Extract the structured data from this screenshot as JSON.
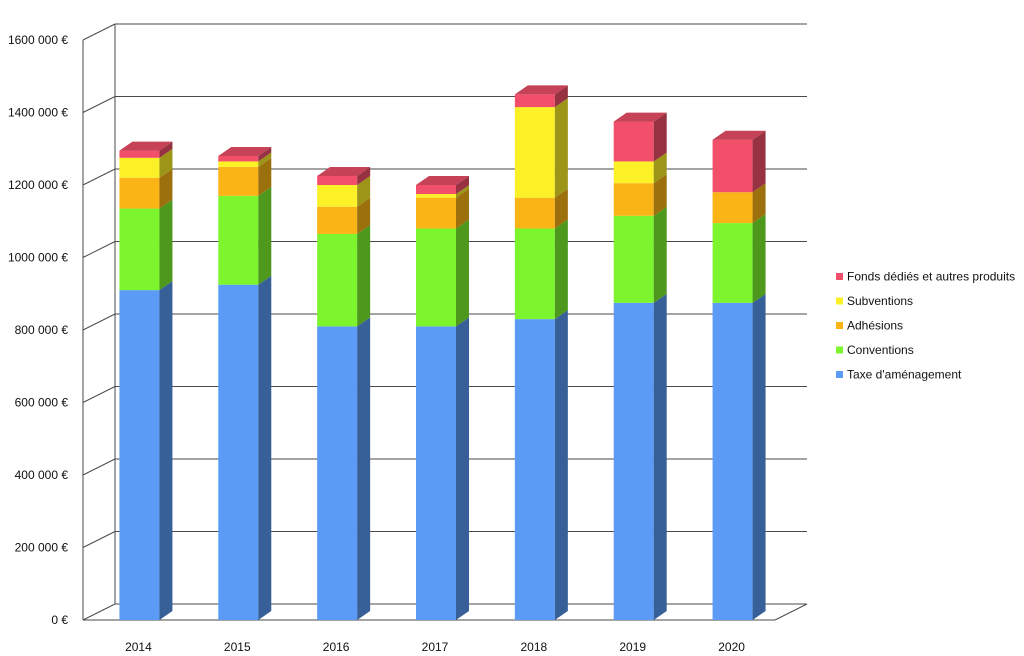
{
  "chart_data": {
    "type": "bar",
    "stacked": true,
    "style": "3d",
    "categories": [
      "2014",
      "2015",
      "2016",
      "2017",
      "2018",
      "2019",
      "2020"
    ],
    "series": [
      {
        "name": "Taxe d'aménagement",
        "color": "#5B9BF5",
        "values": [
          910000,
          925000,
          810000,
          810000,
          830000,
          875000,
          875000
        ]
      },
      {
        "name": "Conventions",
        "color": "#7CF52F",
        "values": [
          225000,
          245000,
          255000,
          270000,
          250000,
          240000,
          220000
        ]
      },
      {
        "name": "Adhésions",
        "color": "#FBB415",
        "values": [
          85000,
          80000,
          75000,
          85000,
          85000,
          90000,
          85000
        ]
      },
      {
        "name": "Subventions",
        "color": "#FCF027",
        "values": [
          55000,
          15000,
          60000,
          10000,
          250000,
          60000,
          0
        ]
      },
      {
        "name": "Fonds dédiés et autres produits",
        "color": "#F2506A",
        "values": [
          20000,
          15000,
          25000,
          25000,
          35000,
          110000,
          145000
        ]
      }
    ],
    "y_ticks": [
      "0 €",
      "200 000 €",
      "400 000 €",
      "600 000 €",
      "800 000 €",
      "1000 000 €",
      "1200 000 €",
      "1400 000 €",
      "1600 000 €"
    ],
    "ylim": [
      0,
      1600000
    ],
    "y_step": 200000,
    "grid": true,
    "legend_position": "right"
  }
}
